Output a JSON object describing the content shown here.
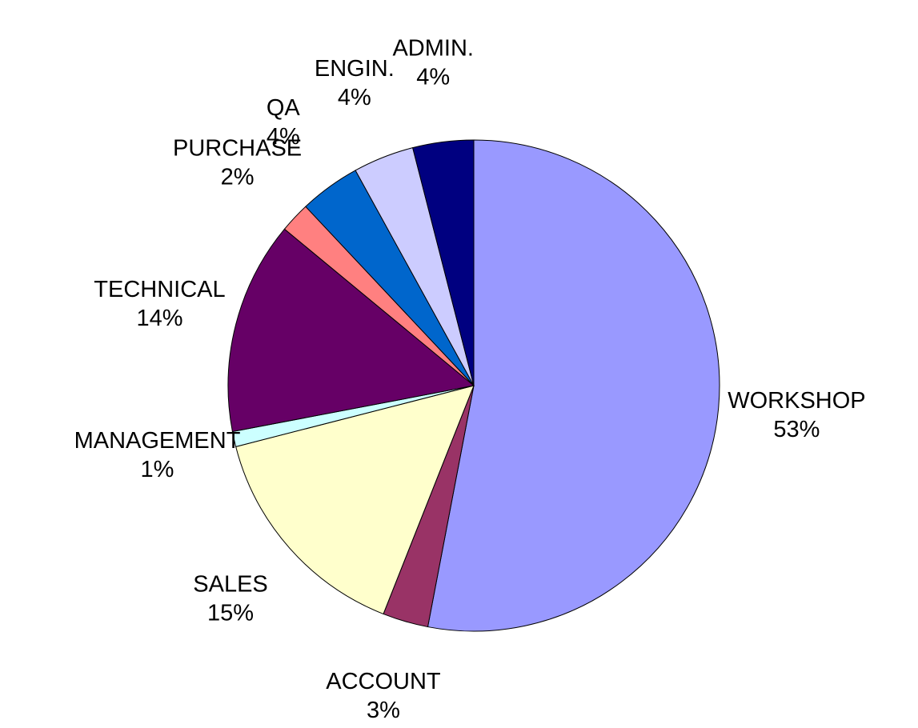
{
  "chart_data": {
    "type": "pie",
    "categories": [
      "WORKSHOP",
      "ACCOUNT",
      "SALES",
      "MANAGEMENT",
      "TECHNICAL",
      "PURCHASE",
      "QA",
      "ENGIN.",
      "ADMIN."
    ],
    "values": [
      53,
      3,
      15,
      1,
      14,
      2,
      4,
      4,
      4
    ],
    "value_labels": [
      "53%",
      "3%",
      "15%",
      "1%",
      "14%",
      "2%",
      "4%",
      "4%",
      "4%"
    ],
    "colors": [
      "#9999ff",
      "#993366",
      "#ffffcc",
      "#ccffff",
      "#660066",
      "#ff8080",
      "#0066cc",
      "#ccccff",
      "#000080"
    ]
  }
}
